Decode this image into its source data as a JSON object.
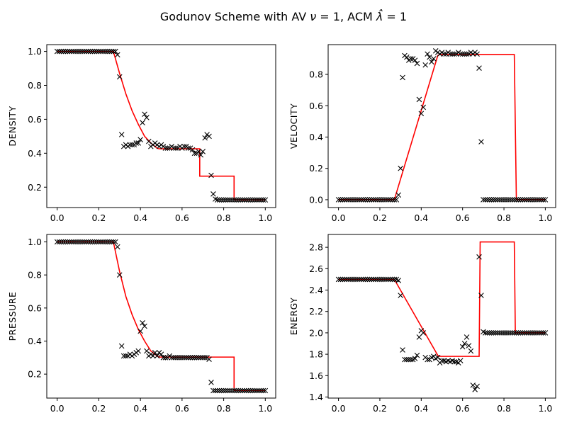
{
  "figure": {
    "title_prefix": "Godunov Scheme with AV ",
    "title_nu_symbol": "ν",
    "title_nu_value": " = 1, ACM ",
    "title_lambda_symbol": "λ̂",
    "title_lambda_value": " = 1"
  },
  "colors": {
    "exact": "#ff0000",
    "numerical": "#000000"
  },
  "chart_data": [
    {
      "type": "line",
      "ylabel": "DENSITY",
      "xlim": [
        -0.05,
        1.05
      ],
      "ylim": [
        0.08,
        1.04
      ],
      "xticks": [
        0.0,
        0.2,
        0.4,
        0.6,
        0.8,
        1.0
      ],
      "yticks": [
        0.2,
        0.4,
        0.6,
        0.8,
        1.0
      ],
      "series": [
        {
          "kind": "line",
          "x": [
            0.0,
            0.27,
            0.3,
            0.33,
            0.36,
            0.39,
            0.42,
            0.45,
            0.48,
            0.49,
            0.685,
            0.685,
            0.85,
            0.85,
            1.0
          ],
          "y": [
            1.0,
            1.0,
            0.87,
            0.75,
            0.65,
            0.57,
            0.5,
            0.46,
            0.43,
            0.426,
            0.426,
            0.265,
            0.265,
            0.125,
            0.125
          ]
        },
        {
          "kind": "scatter",
          "x": [
            0.0,
            0.01,
            0.02,
            0.03,
            0.04,
            0.05,
            0.06,
            0.07,
            0.08,
            0.09,
            0.1,
            0.11,
            0.12,
            0.13,
            0.14,
            0.15,
            0.16,
            0.17,
            0.18,
            0.19,
            0.2,
            0.21,
            0.22,
            0.23,
            0.24,
            0.25,
            0.26,
            0.27,
            0.28,
            0.29,
            0.3,
            0.31,
            0.32,
            0.33,
            0.34,
            0.35,
            0.36,
            0.37,
            0.38,
            0.39,
            0.4,
            0.41,
            0.42,
            0.43,
            0.44,
            0.45,
            0.46,
            0.47,
            0.48,
            0.49,
            0.5,
            0.51,
            0.52,
            0.53,
            0.54,
            0.55,
            0.56,
            0.57,
            0.58,
            0.59,
            0.6,
            0.61,
            0.62,
            0.63,
            0.64,
            0.65,
            0.66,
            0.67,
            0.68,
            0.69,
            0.7,
            0.71,
            0.72,
            0.73,
            0.74,
            0.75,
            0.76,
            0.77,
            0.78,
            0.79,
            0.8,
            0.81,
            0.82,
            0.83,
            0.84,
            0.85,
            0.86,
            0.87,
            0.88,
            0.89,
            0.9,
            0.91,
            0.92,
            0.93,
            0.94,
            0.95,
            0.96,
            0.97,
            0.98,
            0.99,
            1.0
          ],
          "y": [
            1.0,
            1.0,
            1.0,
            1.0,
            1.0,
            1.0,
            1.0,
            1.0,
            1.0,
            1.0,
            1.0,
            1.0,
            1.0,
            1.0,
            1.0,
            1.0,
            1.0,
            1.0,
            1.0,
            1.0,
            1.0,
            1.0,
            1.0,
            1.0,
            1.0,
            1.0,
            1.0,
            1.0,
            1.0,
            0.98,
            0.85,
            0.51,
            0.44,
            0.45,
            0.44,
            0.45,
            0.45,
            0.45,
            0.46,
            0.46,
            0.48,
            0.58,
            0.63,
            0.61,
            0.47,
            0.44,
            0.45,
            0.46,
            0.45,
            0.44,
            0.45,
            0.44,
            0.43,
            0.43,
            0.43,
            0.44,
            0.43,
            0.43,
            0.43,
            0.44,
            0.43,
            0.44,
            0.44,
            0.43,
            0.43,
            0.42,
            0.4,
            0.4,
            0.41,
            0.39,
            0.41,
            0.49,
            0.51,
            0.5,
            0.27,
            0.16,
            0.13,
            0.125,
            0.125,
            0.125,
            0.125,
            0.125,
            0.125,
            0.125,
            0.125,
            0.125,
            0.125,
            0.125,
            0.125,
            0.125,
            0.125,
            0.125,
            0.125,
            0.125,
            0.125,
            0.125,
            0.125,
            0.125,
            0.125,
            0.125,
            0.125
          ]
        }
      ]
    },
    {
      "type": "line",
      "ylabel": "VELOCITY",
      "xlim": [
        -0.05,
        1.05
      ],
      "ylim": [
        -0.05,
        0.99
      ],
      "xticks": [
        0.0,
        0.2,
        0.4,
        0.6,
        0.8,
        1.0
      ],
      "yticks": [
        0.0,
        0.2,
        0.4,
        0.6,
        0.8
      ],
      "series": [
        {
          "kind": "line",
          "x": [
            0.0,
            0.27,
            0.48,
            0.49,
            0.85,
            0.86,
            1.0
          ],
          "y": [
            0.0,
            0.0,
            0.92,
            0.927,
            0.927,
            0.0,
            0.0
          ]
        },
        {
          "kind": "scatter",
          "x": [
            0.0,
            0.01,
            0.02,
            0.03,
            0.04,
            0.05,
            0.06,
            0.07,
            0.08,
            0.09,
            0.1,
            0.11,
            0.12,
            0.13,
            0.14,
            0.15,
            0.16,
            0.17,
            0.18,
            0.19,
            0.2,
            0.21,
            0.22,
            0.23,
            0.24,
            0.25,
            0.26,
            0.27,
            0.28,
            0.29,
            0.3,
            0.31,
            0.32,
            0.33,
            0.34,
            0.35,
            0.36,
            0.37,
            0.38,
            0.39,
            0.4,
            0.41,
            0.42,
            0.43,
            0.44,
            0.45,
            0.46,
            0.47,
            0.48,
            0.49,
            0.5,
            0.51,
            0.52,
            0.53,
            0.54,
            0.55,
            0.56,
            0.57,
            0.58,
            0.59,
            0.6,
            0.61,
            0.62,
            0.63,
            0.64,
            0.65,
            0.66,
            0.67,
            0.68,
            0.69,
            0.7,
            0.71,
            0.72,
            0.73,
            0.74,
            0.75,
            0.76,
            0.77,
            0.78,
            0.79,
            0.8,
            0.81,
            0.82,
            0.83,
            0.84,
            0.85,
            0.86,
            0.87,
            0.88,
            0.89,
            0.9,
            0.91,
            0.92,
            0.93,
            0.94,
            0.95,
            0.96,
            0.97,
            0.98,
            0.99,
            1.0
          ],
          "y": [
            0.0,
            0.0,
            0.0,
            0.0,
            0.0,
            0.0,
            0.0,
            0.0,
            0.0,
            0.0,
            0.0,
            0.0,
            0.0,
            0.0,
            0.0,
            0.0,
            0.0,
            0.0,
            0.0,
            0.0,
            0.0,
            0.0,
            0.0,
            0.0,
            0.0,
            0.0,
            0.0,
            0.0,
            0.0,
            0.03,
            0.2,
            0.78,
            0.92,
            0.91,
            0.89,
            0.9,
            0.9,
            0.89,
            0.87,
            0.64,
            0.55,
            0.59,
            0.86,
            0.93,
            0.91,
            0.88,
            0.9,
            0.95,
            0.94,
            0.93,
            0.94,
            0.93,
            0.93,
            0.94,
            0.93,
            0.93,
            0.93,
            0.93,
            0.94,
            0.93,
            0.93,
            0.93,
            0.93,
            0.93,
            0.94,
            0.93,
            0.94,
            0.93,
            0.84,
            0.37,
            0.0,
            0.0,
            0.0,
            0.0,
            0.0,
            0.0,
            0.0,
            0.0,
            0.0,
            0.0,
            0.0,
            0.0,
            0.0,
            0.0,
            0.0,
            0.0,
            0.0,
            0.0,
            0.0,
            0.0,
            0.0,
            0.0,
            0.0,
            0.0,
            0.0,
            0.0,
            0.0,
            0.0,
            0.0,
            0.0,
            0.0
          ]
        }
      ]
    },
    {
      "type": "line",
      "ylabel": "PRESSURE",
      "xlim": [
        -0.05,
        1.05
      ],
      "ylim": [
        0.055,
        1.045
      ],
      "xticks": [
        0.0,
        0.2,
        0.4,
        0.6,
        0.8,
        1.0
      ],
      "yticks": [
        0.2,
        0.4,
        0.6,
        0.8,
        1.0
      ],
      "series": [
        {
          "kind": "line",
          "x": [
            0.0,
            0.27,
            0.3,
            0.33,
            0.36,
            0.39,
            0.42,
            0.45,
            0.48,
            0.49,
            0.85,
            0.85,
            1.0
          ],
          "y": [
            1.0,
            1.0,
            0.82,
            0.67,
            0.56,
            0.47,
            0.4,
            0.34,
            0.31,
            0.303,
            0.303,
            0.1,
            0.1
          ]
        },
        {
          "kind": "scatter",
          "x": [
            0.0,
            0.01,
            0.02,
            0.03,
            0.04,
            0.05,
            0.06,
            0.07,
            0.08,
            0.09,
            0.1,
            0.11,
            0.12,
            0.13,
            0.14,
            0.15,
            0.16,
            0.17,
            0.18,
            0.19,
            0.2,
            0.21,
            0.22,
            0.23,
            0.24,
            0.25,
            0.26,
            0.27,
            0.28,
            0.29,
            0.3,
            0.31,
            0.32,
            0.33,
            0.34,
            0.35,
            0.36,
            0.37,
            0.38,
            0.39,
            0.4,
            0.41,
            0.42,
            0.43,
            0.44,
            0.45,
            0.46,
            0.47,
            0.48,
            0.49,
            0.5,
            0.51,
            0.52,
            0.53,
            0.54,
            0.55,
            0.56,
            0.57,
            0.58,
            0.59,
            0.6,
            0.61,
            0.62,
            0.63,
            0.64,
            0.65,
            0.66,
            0.67,
            0.68,
            0.69,
            0.7,
            0.71,
            0.72,
            0.73,
            0.74,
            0.75,
            0.76,
            0.77,
            0.78,
            0.79,
            0.8,
            0.81,
            0.82,
            0.83,
            0.84,
            0.85,
            0.86,
            0.87,
            0.88,
            0.89,
            0.9,
            0.91,
            0.92,
            0.93,
            0.94,
            0.95,
            0.96,
            0.97,
            0.98,
            0.99,
            1.0
          ],
          "y": [
            1.0,
            1.0,
            1.0,
            1.0,
            1.0,
            1.0,
            1.0,
            1.0,
            1.0,
            1.0,
            1.0,
            1.0,
            1.0,
            1.0,
            1.0,
            1.0,
            1.0,
            1.0,
            1.0,
            1.0,
            1.0,
            1.0,
            1.0,
            1.0,
            1.0,
            1.0,
            1.0,
            1.0,
            1.0,
            0.97,
            0.8,
            0.37,
            0.31,
            0.31,
            0.31,
            0.32,
            0.31,
            0.32,
            0.33,
            0.34,
            0.46,
            0.51,
            0.49,
            0.34,
            0.31,
            0.32,
            0.31,
            0.33,
            0.31,
            0.33,
            0.32,
            0.3,
            0.3,
            0.3,
            0.31,
            0.3,
            0.3,
            0.3,
            0.3,
            0.3,
            0.3,
            0.3,
            0.3,
            0.3,
            0.3,
            0.3,
            0.3,
            0.3,
            0.3,
            0.3,
            0.3,
            0.3,
            0.3,
            0.29,
            0.15,
            0.1,
            0.1,
            0.1,
            0.1,
            0.1,
            0.1,
            0.1,
            0.1,
            0.1,
            0.1,
            0.1,
            0.1,
            0.1,
            0.1,
            0.1,
            0.1,
            0.1,
            0.1,
            0.1,
            0.1,
            0.1,
            0.1,
            0.1,
            0.1,
            0.1,
            0.1
          ]
        }
      ]
    },
    {
      "type": "line",
      "ylabel": "ENERGY",
      "xlim": [
        -0.05,
        1.05
      ],
      "ylim": [
        1.39,
        2.92
      ],
      "xticks": [
        0.0,
        0.2,
        0.4,
        0.6,
        0.8,
        1.0
      ],
      "yticks": [
        1.4,
        1.6,
        1.8,
        2.0,
        2.2,
        2.4,
        2.6,
        2.8
      ],
      "series": [
        {
          "kind": "line",
          "x": [
            0.0,
            0.27,
            0.48,
            0.49,
            0.68,
            0.685,
            0.85,
            0.855,
            1.0
          ],
          "y": [
            2.5,
            2.5,
            1.79,
            1.78,
            1.78,
            2.85,
            2.85,
            2.0,
            2.0
          ]
        },
        {
          "kind": "scatter",
          "x": [
            0.0,
            0.01,
            0.02,
            0.03,
            0.04,
            0.05,
            0.06,
            0.07,
            0.08,
            0.09,
            0.1,
            0.11,
            0.12,
            0.13,
            0.14,
            0.15,
            0.16,
            0.17,
            0.18,
            0.19,
            0.2,
            0.21,
            0.22,
            0.23,
            0.24,
            0.25,
            0.26,
            0.27,
            0.28,
            0.29,
            0.3,
            0.31,
            0.32,
            0.33,
            0.34,
            0.35,
            0.36,
            0.37,
            0.38,
            0.39,
            0.4,
            0.41,
            0.42,
            0.43,
            0.44,
            0.45,
            0.46,
            0.47,
            0.48,
            0.49,
            0.5,
            0.51,
            0.52,
            0.53,
            0.54,
            0.55,
            0.56,
            0.57,
            0.58,
            0.59,
            0.6,
            0.61,
            0.62,
            0.63,
            0.64,
            0.65,
            0.66,
            0.67,
            0.68,
            0.69,
            0.7,
            0.71,
            0.72,
            0.73,
            0.74,
            0.75,
            0.76,
            0.77,
            0.78,
            0.79,
            0.8,
            0.81,
            0.82,
            0.83,
            0.84,
            0.85,
            0.86,
            0.87,
            0.88,
            0.89,
            0.9,
            0.91,
            0.92,
            0.93,
            0.94,
            0.95,
            0.96,
            0.97,
            0.98,
            0.99,
            1.0
          ],
          "y": [
            2.5,
            2.5,
            2.5,
            2.5,
            2.5,
            2.5,
            2.5,
            2.5,
            2.5,
            2.5,
            2.5,
            2.5,
            2.5,
            2.5,
            2.5,
            2.5,
            2.5,
            2.5,
            2.5,
            2.5,
            2.5,
            2.5,
            2.5,
            2.5,
            2.5,
            2.5,
            2.5,
            2.5,
            2.5,
            2.49,
            2.35,
            1.84,
            1.75,
            1.75,
            1.75,
            1.75,
            1.75,
            1.76,
            1.79,
            1.96,
            2.02,
            2.0,
            1.77,
            1.75,
            1.75,
            1.77,
            1.78,
            1.76,
            1.77,
            1.72,
            1.74,
            1.74,
            1.73,
            1.74,
            1.73,
            1.74,
            1.73,
            1.73,
            1.72,
            1.74,
            1.87,
            1.9,
            1.96,
            1.88,
            1.83,
            1.51,
            1.47,
            1.5,
            2.71,
            2.35,
            2.01,
            2.0,
            2.0,
            2.0,
            2.0,
            2.0,
            2.0,
            2.0,
            2.0,
            2.0,
            2.0,
            2.0,
            2.0,
            2.0,
            2.0,
            2.0,
            2.0,
            2.0,
            2.0,
            2.0,
            2.0,
            2.0,
            2.0,
            2.0,
            2.0,
            2.0,
            2.0,
            2.0,
            2.0,
            2.0,
            2.0
          ]
        }
      ]
    }
  ]
}
